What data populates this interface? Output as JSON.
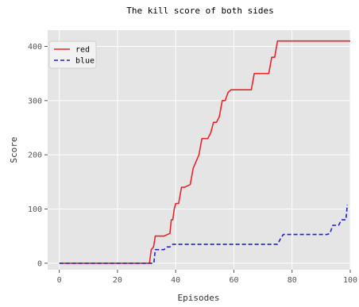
{
  "chart_data": {
    "type": "line",
    "title": "The kill score of both sides",
    "xlabel": "Episodes",
    "ylabel": "Score",
    "xlim": [
      -4,
      100
    ],
    "ylim": [
      -12,
      430
    ],
    "xticks": [
      0,
      20,
      40,
      60,
      80,
      100
    ],
    "yticks": [
      0,
      100,
      200,
      300,
      400
    ],
    "grid": true,
    "legend_position": "top-left",
    "series": [
      {
        "name": "red",
        "color": "#e8252a",
        "linestyle": "solid",
        "x": [
          0,
          31,
          31.6,
          32.4,
          33,
          35,
          36,
          38,
          38.5,
          39,
          39.5,
          40,
          41,
          42,
          43,
          45,
          46,
          48,
          49,
          51,
          52,
          53,
          54,
          55,
          56,
          57,
          58,
          59,
          61,
          62,
          63,
          66,
          67,
          68,
          69,
          72,
          73,
          74,
          75,
          76,
          100
        ],
        "y": [
          0,
          0,
          25,
          30,
          50,
          50,
          50,
          55,
          80,
          80,
          100,
          110,
          110,
          140,
          140,
          145,
          175,
          200,
          230,
          230,
          240,
          260,
          260,
          270,
          300,
          300,
          315,
          320,
          320,
          320,
          320,
          320,
          350,
          350,
          350,
          350,
          380,
          380,
          410,
          410,
          410
        ]
      },
      {
        "name": "blue",
        "color": "#1f1fd1",
        "linestyle": "dashed",
        "x": [
          0,
          32.5,
          33,
          36,
          37,
          38,
          39,
          75,
          76,
          77,
          92,
          93,
          94,
          96,
          97,
          98.5,
          99
        ],
        "y": [
          0,
          0,
          25,
          25,
          30,
          30,
          35,
          35,
          45,
          53,
          53,
          55,
          70,
          70,
          80,
          80,
          108
        ]
      }
    ]
  }
}
